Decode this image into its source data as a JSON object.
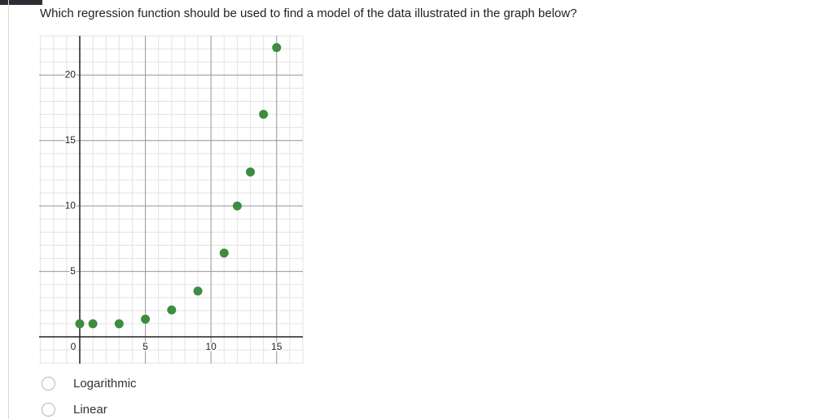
{
  "question": "Which regression function should be used to find a model of the data illustrated in the graph below?",
  "chart_data": {
    "type": "scatter",
    "x": [
      0,
      1,
      3,
      5,
      7,
      9,
      11,
      12,
      13,
      14,
      15
    ],
    "series": [
      {
        "color": "#3d8c40",
        "values": [
          1,
          1,
          1,
          1.35,
          2.05,
          3.5,
          6.4,
          10,
          12.6,
          17,
          22.1
        ]
      }
    ],
    "xlim": [
      -3.1,
      17
    ],
    "ylim": [
      -2.05,
      23
    ],
    "xticks": [
      0,
      5,
      10,
      15
    ],
    "yticks": [
      5,
      10,
      15,
      20
    ],
    "xminor": [
      -3,
      -2,
      -1,
      0,
      1,
      2,
      3,
      4,
      5,
      6,
      7,
      8,
      9,
      10,
      11,
      12,
      13,
      14,
      15,
      16,
      17
    ],
    "yminor": [
      -2,
      -1,
      0,
      1,
      2,
      3,
      4,
      5,
      6,
      7,
      8,
      9,
      10,
      11,
      12,
      13,
      14,
      15,
      16,
      17,
      18,
      19,
      20,
      21,
      22,
      23
    ],
    "grid": true
  },
  "options": [
    "Logarithmic",
    "Linear"
  ]
}
